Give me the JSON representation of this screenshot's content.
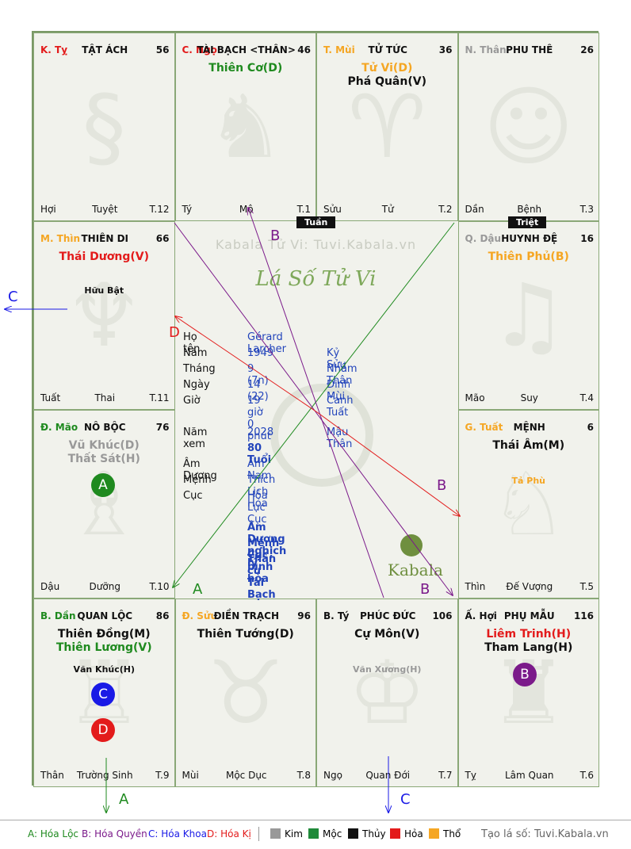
{
  "watermark": "Kabala Tử Vi: Tuvi.Kabala.vn",
  "chart_title": "Lá Số Tử Vi",
  "logo_text": "Kabala",
  "tuan": "Tuần",
  "triet": "Triệt",
  "palaces": [
    {
      "can": "K. Tỵ",
      "can_color": "#e31b1b",
      "name": "TẬT ÁCH",
      "num": "56",
      "stars": [],
      "minor": [],
      "branch": "Hợi",
      "stage": "Tuyệt",
      "t": "T.12",
      "glyph": "§"
    },
    {
      "can": "C. Ngọ",
      "can_color": "#e31b1b",
      "name": "TÀI BẠCH <THÂN>",
      "num": "46",
      "stars": [
        {
          "text": "Thiên Cơ(D)",
          "color": "#1f8a1f"
        }
      ],
      "minor": [],
      "branch": "Tý",
      "stage": "Mộ",
      "t": "T.1",
      "glyph": "♞"
    },
    {
      "can": "T. Mùi",
      "can_color": "#f5a623",
      "name": "TỬ TỨC",
      "num": "36",
      "stars": [
        {
          "text": "Tử Vi(D)",
          "color": "#f5a623"
        },
        {
          "text": "Phá Quân(V)",
          "color": "#111111"
        }
      ],
      "minor": [],
      "branch": "Sửu",
      "stage": "Tử",
      "t": "T.2",
      "glyph": "♈"
    },
    {
      "can": "N. Thân",
      "can_color": "#999999",
      "name": "PHU THÊ",
      "num": "26",
      "stars": [],
      "minor": [],
      "branch": "Dần",
      "stage": "Bệnh",
      "t": "T.3",
      "glyph": "☺"
    },
    {
      "can": "M. Thìn",
      "can_color": "#f5a623",
      "name": "THIÊN DI",
      "num": "66",
      "stars": [
        {
          "text": "Thái Dương(V)",
          "color": "#e31b1b"
        }
      ],
      "minor": [
        {
          "text": "Hữu Bật",
          "color": "#111111",
          "top": 80
        }
      ],
      "branch": "Tuất",
      "stage": "Thai",
      "t": "T.11",
      "glyph": "♆"
    },
    {
      "can": "Q. Dậu",
      "can_color": "#999999",
      "name": "HUYNH ĐỆ",
      "num": "16",
      "stars": [
        {
          "text": "Thiên Phủ(B)",
          "color": "#f5a623"
        }
      ],
      "minor": [],
      "branch": "Mão",
      "stage": "Suy",
      "t": "T.4",
      "glyph": "♫"
    },
    {
      "can": "Đ. Mão",
      "can_color": "#1f8a1f",
      "name": "NÔ BỘC",
      "num": "76",
      "stars": [
        {
          "text": "Vũ Khúc(D)",
          "color": "#999999"
        },
        {
          "text": "Thất Sát(H)",
          "color": "#999999"
        }
      ],
      "minor": [],
      "branch": "Dậu",
      "stage": "Dưỡng",
      "t": "T.10",
      "glyph": "♗"
    },
    {
      "can": "G. Tuất",
      "can_color": "#f5a623",
      "name": "MỆNH",
      "num": "6",
      "stars": [
        {
          "text": "Thái Âm(M)",
          "color": "#111111"
        }
      ],
      "minor": [
        {
          "text": "Tả Phù",
          "color": "#f5a623",
          "top": 82
        }
      ],
      "branch": "Thìn",
      "stage": "Đế Vượng",
      "t": "T.5",
      "glyph": "♘"
    },
    {
      "can": "B. Dần",
      "can_color": "#1f8a1f",
      "name": "QUAN LỘC",
      "num": "86",
      "stars": [
        {
          "text": "Thiên Đồng(M)",
          "color": "#111111"
        },
        {
          "text": "Thiên Lương(V)",
          "color": "#1f8a1f"
        }
      ],
      "minor": [
        {
          "text": "Văn Khúc(H)",
          "color": "#111111",
          "top": 82
        }
      ],
      "branch": "Thân",
      "stage": "Trường Sinh",
      "t": "T.9",
      "glyph": "♖"
    },
    {
      "can": "Đ. Sửu",
      "can_color": "#f5a623",
      "name": "ĐIỀN TRẠCH",
      "num": "96",
      "stars": [
        {
          "text": "Thiên Tướng(D)",
          "color": "#111111"
        }
      ],
      "minor": [],
      "branch": "Mùi",
      "stage": "Mộc Dục",
      "t": "T.8",
      "glyph": "♉"
    },
    {
      "can": "B. Tý",
      "can_color": "#111111",
      "name": "PHÚC ĐỨC",
      "num": "106",
      "stars": [
        {
          "text": "Cự Môn(V)",
          "color": "#111111"
        }
      ],
      "minor": [
        {
          "text": "Văn Xương(H)",
          "color": "#999999",
          "top": 82
        }
      ],
      "branch": "Ngọ",
      "stage": "Quan Đới",
      "t": "T.7",
      "glyph": "♔"
    },
    {
      "can": "Ấ. Hợi",
      "can_color": "#111111",
      "name": "PHỤ MẪU",
      "num": "116",
      "stars": [
        {
          "text": "Liêm Trinh(H)",
          "color": "#e31b1b"
        },
        {
          "text": "Tham Lang(H)",
          "color": "#111111"
        }
      ],
      "minor": [],
      "branch": "Tỵ",
      "stage": "Lâm Quan",
      "t": "T.6",
      "glyph": "♜"
    }
  ],
  "info": {
    "rows": [
      {
        "label": "Họ tên",
        "v1": "Gérard Larcher",
        "v2": ""
      },
      {
        "label": "Năm",
        "v1": "1949",
        "v2": "Kỷ Sửu"
      },
      {
        "label": "Tháng",
        "v1": "9  (7n)",
        "v2": "Nhâm Thân"
      },
      {
        "label": "Ngày",
        "v1": "14  (22)",
        "v2": "Đinh Mùi"
      },
      {
        "label": "Giờ",
        "v1": "19 giờ 0 phút",
        "v2": "Canh Tuất"
      },
      {
        "label": "Năm xem",
        "v1": "2028",
        "v2": "Mậu Thân"
      },
      {
        "label": "",
        "v1": "80 Tuổi",
        "v2": ""
      },
      {
        "label": "Âm Dương",
        "v1": "Âm Nam",
        "v2": ""
      },
      {
        "label": "Mệnh",
        "v1": "Thích Lịch Hỏa",
        "v2": ""
      },
      {
        "label": "Cục",
        "v1": "Hỏa Lục Cục",
        "v2": ""
      }
    ],
    "notes": [
      "Âm Dương nghịch lý",
      "Mệnh Cục bình hòa",
      "Thân cư Tài Bạch"
    ]
  },
  "badges": [
    {
      "letter": "A",
      "color": "#1f8a1f"
    },
    {
      "letter": "C",
      "color": "#1a1ae6"
    },
    {
      "letter": "D",
      "color": "#e31b1b"
    },
    {
      "letter": "B",
      "color": "#7b1a8a"
    }
  ],
  "arrow_labels": {
    "a": "A",
    "b": "B",
    "c": "C",
    "d": "D"
  },
  "legend": {
    "a": "A: Hóa Lộc",
    "b": "B: Hóa Quyền",
    "c": "C: Hóa Khoa",
    "d": "D: Hóa Kị",
    "elements": [
      {
        "name": "Kim",
        "color": "#999999"
      },
      {
        "name": "Mộc",
        "color": "#1f8a3a"
      },
      {
        "name": "Thủy",
        "color": "#111111"
      },
      {
        "name": "Hỏa",
        "color": "#e31b1b"
      },
      {
        "name": "Thổ",
        "color": "#f5a623"
      }
    ],
    "credit": "Tạo lá số: Tuvi.Kabala.vn"
  },
  "colors": {
    "a": "#1f8a1f",
    "b": "#7b1a8a",
    "c": "#1a1ae6",
    "d": "#e31b1b"
  }
}
